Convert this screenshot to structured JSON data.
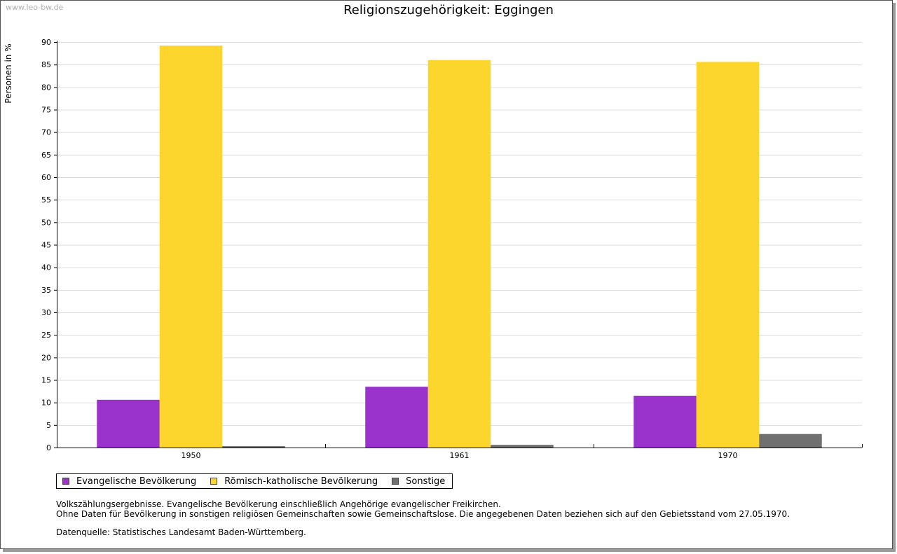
{
  "watermark": "www.leo-bw.de",
  "chart_data": {
    "type": "bar",
    "title": "Religionszugehörigkeit: Eggingen",
    "ylabel": "Personen in %",
    "xlabel": "",
    "ylim": [
      0,
      90
    ],
    "yticks": [
      0,
      5,
      10,
      15,
      20,
      25,
      30,
      35,
      40,
      45,
      50,
      55,
      60,
      65,
      70,
      75,
      80,
      85,
      90
    ],
    "categories": [
      "1950",
      "1961",
      "1970"
    ],
    "series": [
      {
        "name": "Evangelische Bevölkerung",
        "color": "#9933cc",
        "values": [
          10.6,
          13.5,
          11.5
        ]
      },
      {
        "name": "Römisch-katholische Bevölkerung",
        "color": "#fcd62c",
        "values": [
          89.2,
          86.0,
          85.6
        ]
      },
      {
        "name": "Sonstige",
        "color": "#707070",
        "values": [
          0.3,
          0.6,
          3.0
        ]
      }
    ],
    "grid": true,
    "legend": "bottom-left"
  },
  "notes": {
    "line1": "Volkszählungsergebnisse. Evangelische Bevölkerung einschließlich Angehörige evangelischer Freikirchen.",
    "line2": "Ohne Daten für Bevölkerung in sonstigen religiösen Gemeinschaften sowie Gemeinschaftslose. Die angegebenen Daten beziehen sich auf den Gebietsstand vom 27.05.1970.",
    "source": "Datenquelle: Statistisches Landesamt Baden-Württemberg."
  }
}
